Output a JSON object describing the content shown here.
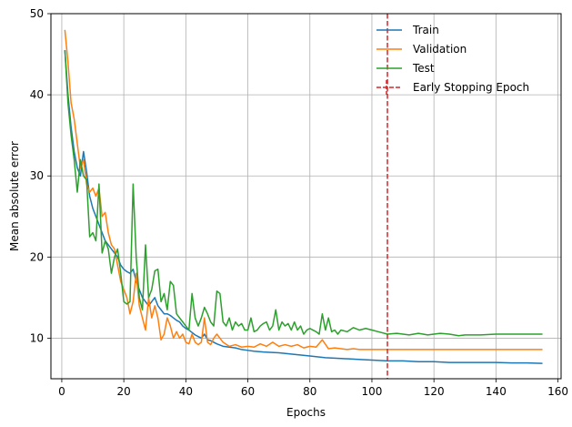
{
  "chart_data": {
    "type": "line",
    "title": "",
    "xlabel": "Epochs",
    "ylabel": "Mean absolute error",
    "xlim": [
      -3.5,
      161
    ],
    "ylim": [
      5,
      50
    ],
    "xticks": [
      0,
      20,
      40,
      60,
      80,
      100,
      120,
      140,
      160
    ],
    "yticks": [
      10,
      20,
      30,
      40,
      50
    ],
    "grid": true,
    "legend_position": "top-right",
    "series": [
      {
        "name": "Train",
        "color": "#1f77b4",
        "points": [
          [
            1,
            45.5
          ],
          [
            2,
            40
          ],
          [
            3,
            36
          ],
          [
            4,
            33
          ],
          [
            5,
            31
          ],
          [
            6,
            30
          ],
          [
            7,
            33
          ],
          [
            8,
            30.5
          ],
          [
            9,
            27.5
          ],
          [
            10,
            26
          ],
          [
            11,
            25
          ],
          [
            12,
            24
          ],
          [
            13,
            23
          ],
          [
            14,
            22
          ],
          [
            15,
            21.5
          ],
          [
            16,
            21
          ],
          [
            17,
            20.5
          ],
          [
            18,
            20
          ],
          [
            19,
            19
          ],
          [
            20,
            18.5
          ],
          [
            21,
            18.2
          ],
          [
            22,
            18
          ],
          [
            23,
            18.5
          ],
          [
            24,
            17
          ],
          [
            25,
            16
          ],
          [
            26,
            15
          ],
          [
            27,
            14.5
          ],
          [
            28,
            14
          ],
          [
            29,
            14.5
          ],
          [
            30,
            15
          ],
          [
            31,
            14
          ],
          [
            32,
            13.5
          ],
          [
            33,
            13
          ],
          [
            34,
            13
          ],
          [
            35,
            12.8
          ],
          [
            36,
            12.5
          ],
          [
            37,
            12.2
          ],
          [
            38,
            12
          ],
          [
            39,
            11.5
          ],
          [
            40,
            11.2
          ],
          [
            41,
            11
          ],
          [
            42,
            10.7
          ],
          [
            43,
            10.4
          ],
          [
            44,
            10.2
          ],
          [
            45,
            10
          ],
          [
            46,
            10.5
          ],
          [
            47,
            9.8
          ],
          [
            48,
            9.7
          ],
          [
            49,
            9.5
          ],
          [
            50,
            9.3
          ],
          [
            52,
            9
          ],
          [
            54,
            8.9
          ],
          [
            56,
            8.8
          ],
          [
            58,
            8.6
          ],
          [
            60,
            8.5
          ],
          [
            62,
            8.4
          ],
          [
            65,
            8.3
          ],
          [
            70,
            8.2
          ],
          [
            75,
            8.0
          ],
          [
            80,
            7.8
          ],
          [
            85,
            7.6
          ],
          [
            90,
            7.5
          ],
          [
            95,
            7.4
          ],
          [
            100,
            7.3
          ],
          [
            105,
            7.2
          ],
          [
            110,
            7.2
          ],
          [
            115,
            7.1
          ],
          [
            120,
            7.1
          ],
          [
            125,
            7.0
          ],
          [
            130,
            7.0
          ],
          [
            135,
            7.0
          ],
          [
            140,
            7.0
          ],
          [
            145,
            6.95
          ],
          [
            150,
            6.95
          ],
          [
            155,
            6.9
          ]
        ]
      },
      {
        "name": "Validation",
        "color": "#ff7f0e",
        "points": [
          [
            1,
            48
          ],
          [
            2,
            44
          ],
          [
            3,
            39
          ],
          [
            4,
            37
          ],
          [
            5,
            34
          ],
          [
            6,
            31
          ],
          [
            7,
            32
          ],
          [
            8,
            29
          ],
          [
            9,
            28
          ],
          [
            10,
            28.5
          ],
          [
            11,
            27.5
          ],
          [
            12,
            28.5
          ],
          [
            13,
            25
          ],
          [
            14,
            25.5
          ],
          [
            15,
            23
          ],
          [
            16,
            21.5
          ],
          [
            17,
            21
          ],
          [
            18,
            19
          ],
          [
            19,
            17
          ],
          [
            20,
            16
          ],
          [
            21,
            15
          ],
          [
            22,
            13
          ],
          [
            23,
            14.5
          ],
          [
            24,
            18
          ],
          [
            25,
            14
          ],
          [
            26,
            12.5
          ],
          [
            27,
            11
          ],
          [
            28,
            15
          ],
          [
            29,
            12.5
          ],
          [
            30,
            14
          ],
          [
            31,
            12.5
          ],
          [
            32,
            9.8
          ],
          [
            33,
            10.5
          ],
          [
            34,
            12.5
          ],
          [
            35,
            11.5
          ],
          [
            36,
            10
          ],
          [
            37,
            10.8
          ],
          [
            38,
            10
          ],
          [
            39,
            10.5
          ],
          [
            40,
            9.5
          ],
          [
            41,
            9.3
          ],
          [
            42,
            10.5
          ],
          [
            43,
            9.5
          ],
          [
            44,
            9.2
          ],
          [
            45,
            9.5
          ],
          [
            46,
            12.5
          ],
          [
            47,
            9.5
          ],
          [
            48,
            9.2
          ],
          [
            49,
            10
          ],
          [
            50,
            10.5
          ],
          [
            51,
            10
          ],
          [
            52,
            9.5
          ],
          [
            54,
            9.0
          ],
          [
            56,
            9.2
          ],
          [
            58,
            8.9
          ],
          [
            60,
            9.0
          ],
          [
            62,
            8.9
          ],
          [
            64,
            9.3
          ],
          [
            66,
            9.0
          ],
          [
            68,
            9.5
          ],
          [
            70,
            9.0
          ],
          [
            72,
            9.2
          ],
          [
            74,
            9.0
          ],
          [
            76,
            9.2
          ],
          [
            78,
            8.8
          ],
          [
            80,
            9.0
          ],
          [
            82,
            8.9
          ],
          [
            84,
            9.8
          ],
          [
            86,
            8.7
          ],
          [
            88,
            8.8
          ],
          [
            90,
            8.7
          ],
          [
            92,
            8.6
          ],
          [
            94,
            8.7
          ],
          [
            96,
            8.6
          ],
          [
            98,
            8.6
          ],
          [
            100,
            8.6
          ],
          [
            105,
            8.6
          ],
          [
            110,
            8.6
          ],
          [
            115,
            8.6
          ],
          [
            120,
            8.6
          ],
          [
            125,
            8.6
          ],
          [
            130,
            8.6
          ],
          [
            135,
            8.6
          ],
          [
            140,
            8.6
          ],
          [
            145,
            8.6
          ],
          [
            150,
            8.6
          ],
          [
            155,
            8.6
          ]
        ]
      },
      {
        "name": "Test",
        "color": "#2ca02c",
        "points": [
          [
            1,
            45.5
          ],
          [
            2,
            39
          ],
          [
            3,
            35
          ],
          [
            4,
            32
          ],
          [
            5,
            28
          ],
          [
            6,
            32
          ],
          [
            7,
            30
          ],
          [
            8,
            29.5
          ],
          [
            9,
            22.5
          ],
          [
            10,
            23
          ],
          [
            11,
            22
          ],
          [
            12,
            29
          ],
          [
            13,
            20.5
          ],
          [
            14,
            22
          ],
          [
            15,
            21
          ],
          [
            16,
            18
          ],
          [
            17,
            20
          ],
          [
            18,
            21
          ],
          [
            19,
            18
          ],
          [
            20,
            14.5
          ],
          [
            21,
            14.2
          ],
          [
            22,
            14.5
          ],
          [
            23,
            29
          ],
          [
            24,
            20
          ],
          [
            25,
            15
          ],
          [
            26,
            13.5
          ],
          [
            27,
            21.5
          ],
          [
            28,
            15
          ],
          [
            29,
            16
          ],
          [
            30,
            18.3
          ],
          [
            31,
            18.5
          ],
          [
            32,
            14.5
          ],
          [
            33,
            15.5
          ],
          [
            34,
            13.5
          ],
          [
            35,
            17
          ],
          [
            36,
            16.5
          ],
          [
            37,
            13
          ],
          [
            38,
            12.5
          ],
          [
            39,
            12
          ],
          [
            40,
            11.5
          ],
          [
            41,
            11
          ],
          [
            42,
            15.5
          ],
          [
            43,
            12.5
          ],
          [
            44,
            11.5
          ],
          [
            45,
            12.5
          ],
          [
            46,
            13.8
          ],
          [
            47,
            13
          ],
          [
            48,
            12
          ],
          [
            49,
            11.5
          ],
          [
            50,
            15.8
          ],
          [
            51,
            15.5
          ],
          [
            52,
            12
          ],
          [
            53,
            11.5
          ],
          [
            54,
            12.5
          ],
          [
            55,
            11
          ],
          [
            56,
            12
          ],
          [
            57,
            11.5
          ],
          [
            58,
            11.8
          ],
          [
            59,
            11
          ],
          [
            60,
            11
          ],
          [
            61,
            12.5
          ],
          [
            62,
            10.8
          ],
          [
            63,
            11
          ],
          [
            64,
            11.5
          ],
          [
            65,
            11.8
          ],
          [
            66,
            12
          ],
          [
            67,
            11
          ],
          [
            68,
            11.5
          ],
          [
            69,
            13.5
          ],
          [
            70,
            11
          ],
          [
            71,
            12
          ],
          [
            72,
            11.5
          ],
          [
            73,
            11.8
          ],
          [
            74,
            11
          ],
          [
            75,
            12
          ],
          [
            76,
            11
          ],
          [
            77,
            11.5
          ],
          [
            78,
            10.5
          ],
          [
            79,
            11
          ],
          [
            80,
            11.2
          ],
          [
            81,
            11
          ],
          [
            82,
            10.8
          ],
          [
            83,
            10.5
          ],
          [
            84,
            13
          ],
          [
            85,
            11
          ],
          [
            86,
            12.5
          ],
          [
            87,
            10.8
          ],
          [
            88,
            11
          ],
          [
            89,
            10.5
          ],
          [
            90,
            11
          ],
          [
            92,
            10.8
          ],
          [
            94,
            11.3
          ],
          [
            96,
            11
          ],
          [
            98,
            11.2
          ],
          [
            100,
            11
          ],
          [
            102,
            10.8
          ],
          [
            105,
            10.5
          ],
          [
            108,
            10.6
          ],
          [
            110,
            10.5
          ],
          [
            112,
            10.4
          ],
          [
            115,
            10.6
          ],
          [
            118,
            10.4
          ],
          [
            120,
            10.5
          ],
          [
            122,
            10.6
          ],
          [
            125,
            10.5
          ],
          [
            128,
            10.3
          ],
          [
            130,
            10.4
          ],
          [
            135,
            10.4
          ],
          [
            140,
            10.5
          ],
          [
            145,
            10.5
          ],
          [
            150,
            10.5
          ],
          [
            155,
            10.5
          ]
        ]
      }
    ],
    "annotations": [
      {
        "type": "vline",
        "name": "Early Stopping Epoch",
        "x": 105,
        "color": "#d62728",
        "style": "dashed"
      }
    ]
  }
}
